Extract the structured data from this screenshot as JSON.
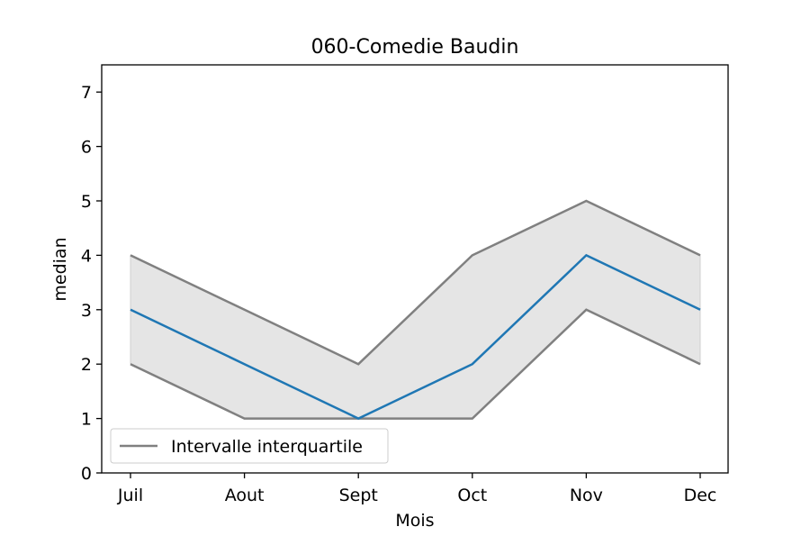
{
  "chart_data": {
    "type": "line",
    "title": "060-Comedie Baudin",
    "xlabel": "Mois",
    "ylabel": "median",
    "categories": [
      "Juil",
      "Aout",
      "Sept",
      "Oct",
      "Nov",
      "Dec"
    ],
    "ylim": [
      0,
      7.5
    ],
    "yticks": [
      0,
      1,
      2,
      3,
      4,
      5,
      6,
      7
    ],
    "series": [
      {
        "values": [
          3,
          2,
          1,
          2,
          4,
          3
        ],
        "color": "#1f77b4"
      }
    ],
    "band": {
      "name": "Intervalle interquartile",
      "lower": [
        2,
        1,
        1,
        1,
        3,
        2
      ],
      "upper": [
        4,
        3,
        2,
        4,
        5,
        4
      ],
      "line_color": "#808080",
      "fill_color": "#e5e5e5"
    },
    "legend_position": "lower-left",
    "grid": false
  }
}
